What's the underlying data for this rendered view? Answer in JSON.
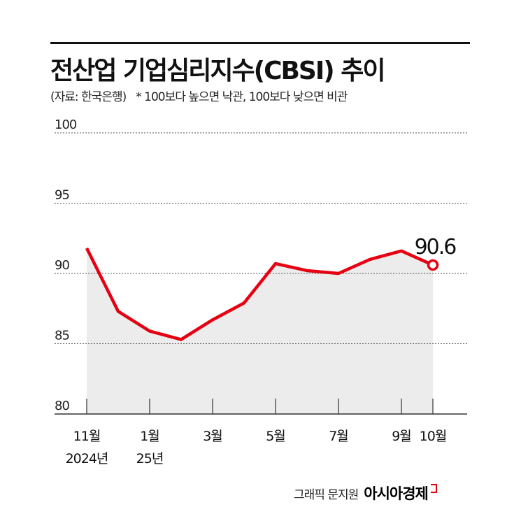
{
  "title": "전산업 기업심리지수(CBSI) 추이",
  "source": "(자료: 한국은행)",
  "note": "* 100보다 높으면 낙관, 100보다 낮으면 비관",
  "credit": {
    "author": "그래픽 문지원",
    "brand": "아시아경제"
  },
  "colors": {
    "line": "#e60012",
    "area": "#ececec",
    "grid": "#555555"
  },
  "chart_data": {
    "type": "area",
    "x": [
      "2024-11",
      "2024-12",
      "2025-01",
      "2025-02",
      "2025-03",
      "2025-04",
      "2025-05",
      "2025-06",
      "2025-07",
      "2025-08",
      "2025-09",
      "2025-10"
    ],
    "values": [
      91.8,
      87.3,
      85.9,
      85.3,
      86.7,
      87.9,
      90.7,
      90.2,
      90.0,
      91.0,
      91.6,
      90.6
    ],
    "ylim": [
      80,
      100
    ],
    "yticks": [
      "80",
      "85",
      "90",
      "95",
      "100"
    ],
    "xticks": [
      {
        "index": 0,
        "label": "11월",
        "sub": "2024년"
      },
      {
        "index": 2,
        "label": "1월",
        "sub": "25년"
      },
      {
        "index": 4,
        "label": "3월",
        "sub": ""
      },
      {
        "index": 6,
        "label": "5월",
        "sub": ""
      },
      {
        "index": 8,
        "label": "7월",
        "sub": ""
      },
      {
        "index": 10,
        "label": "9월",
        "sub": ""
      },
      {
        "index": 11,
        "label": "10월",
        "sub": ""
      }
    ],
    "annotation": {
      "index": 11,
      "text": "90.6"
    },
    "grid": true
  }
}
